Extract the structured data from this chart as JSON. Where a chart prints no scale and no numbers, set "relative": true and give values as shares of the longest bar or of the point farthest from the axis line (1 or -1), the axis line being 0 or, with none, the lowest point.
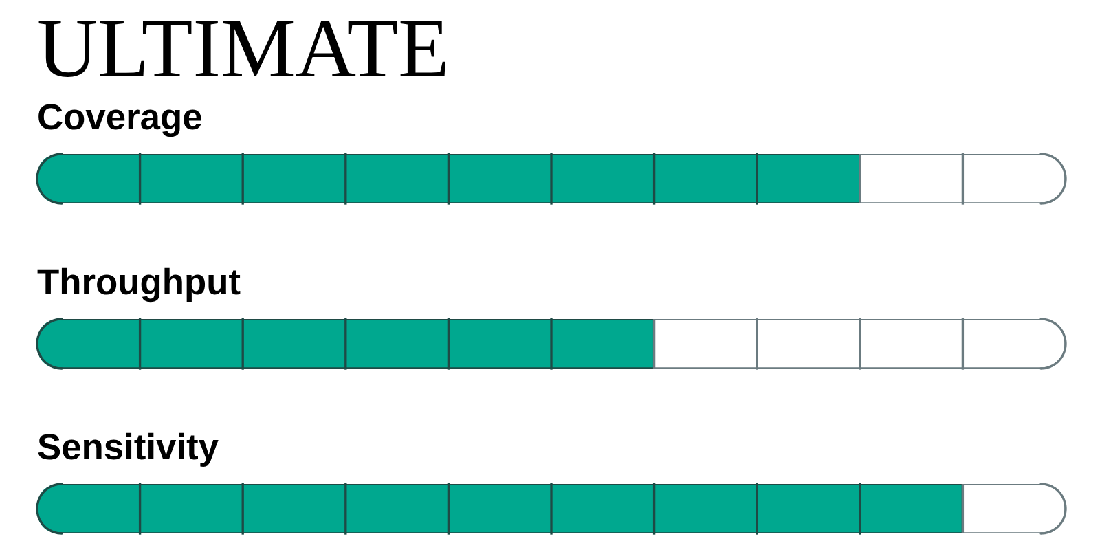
{
  "chart_data": {
    "type": "bar",
    "title": "ULTIMATE",
    "orientation": "horizontal",
    "stacked": true,
    "relative": true,
    "categories": [
      "Coverage",
      "Throughput",
      "Sensitivity"
    ],
    "series": [
      {
        "color": "#00a88f",
        "values": [
          0.8,
          0.6,
          0.9
        ]
      },
      {
        "color": "#ffffff",
        "values": [
          0.2,
          0.4,
          0.1
        ]
      }
    ]
  }
}
